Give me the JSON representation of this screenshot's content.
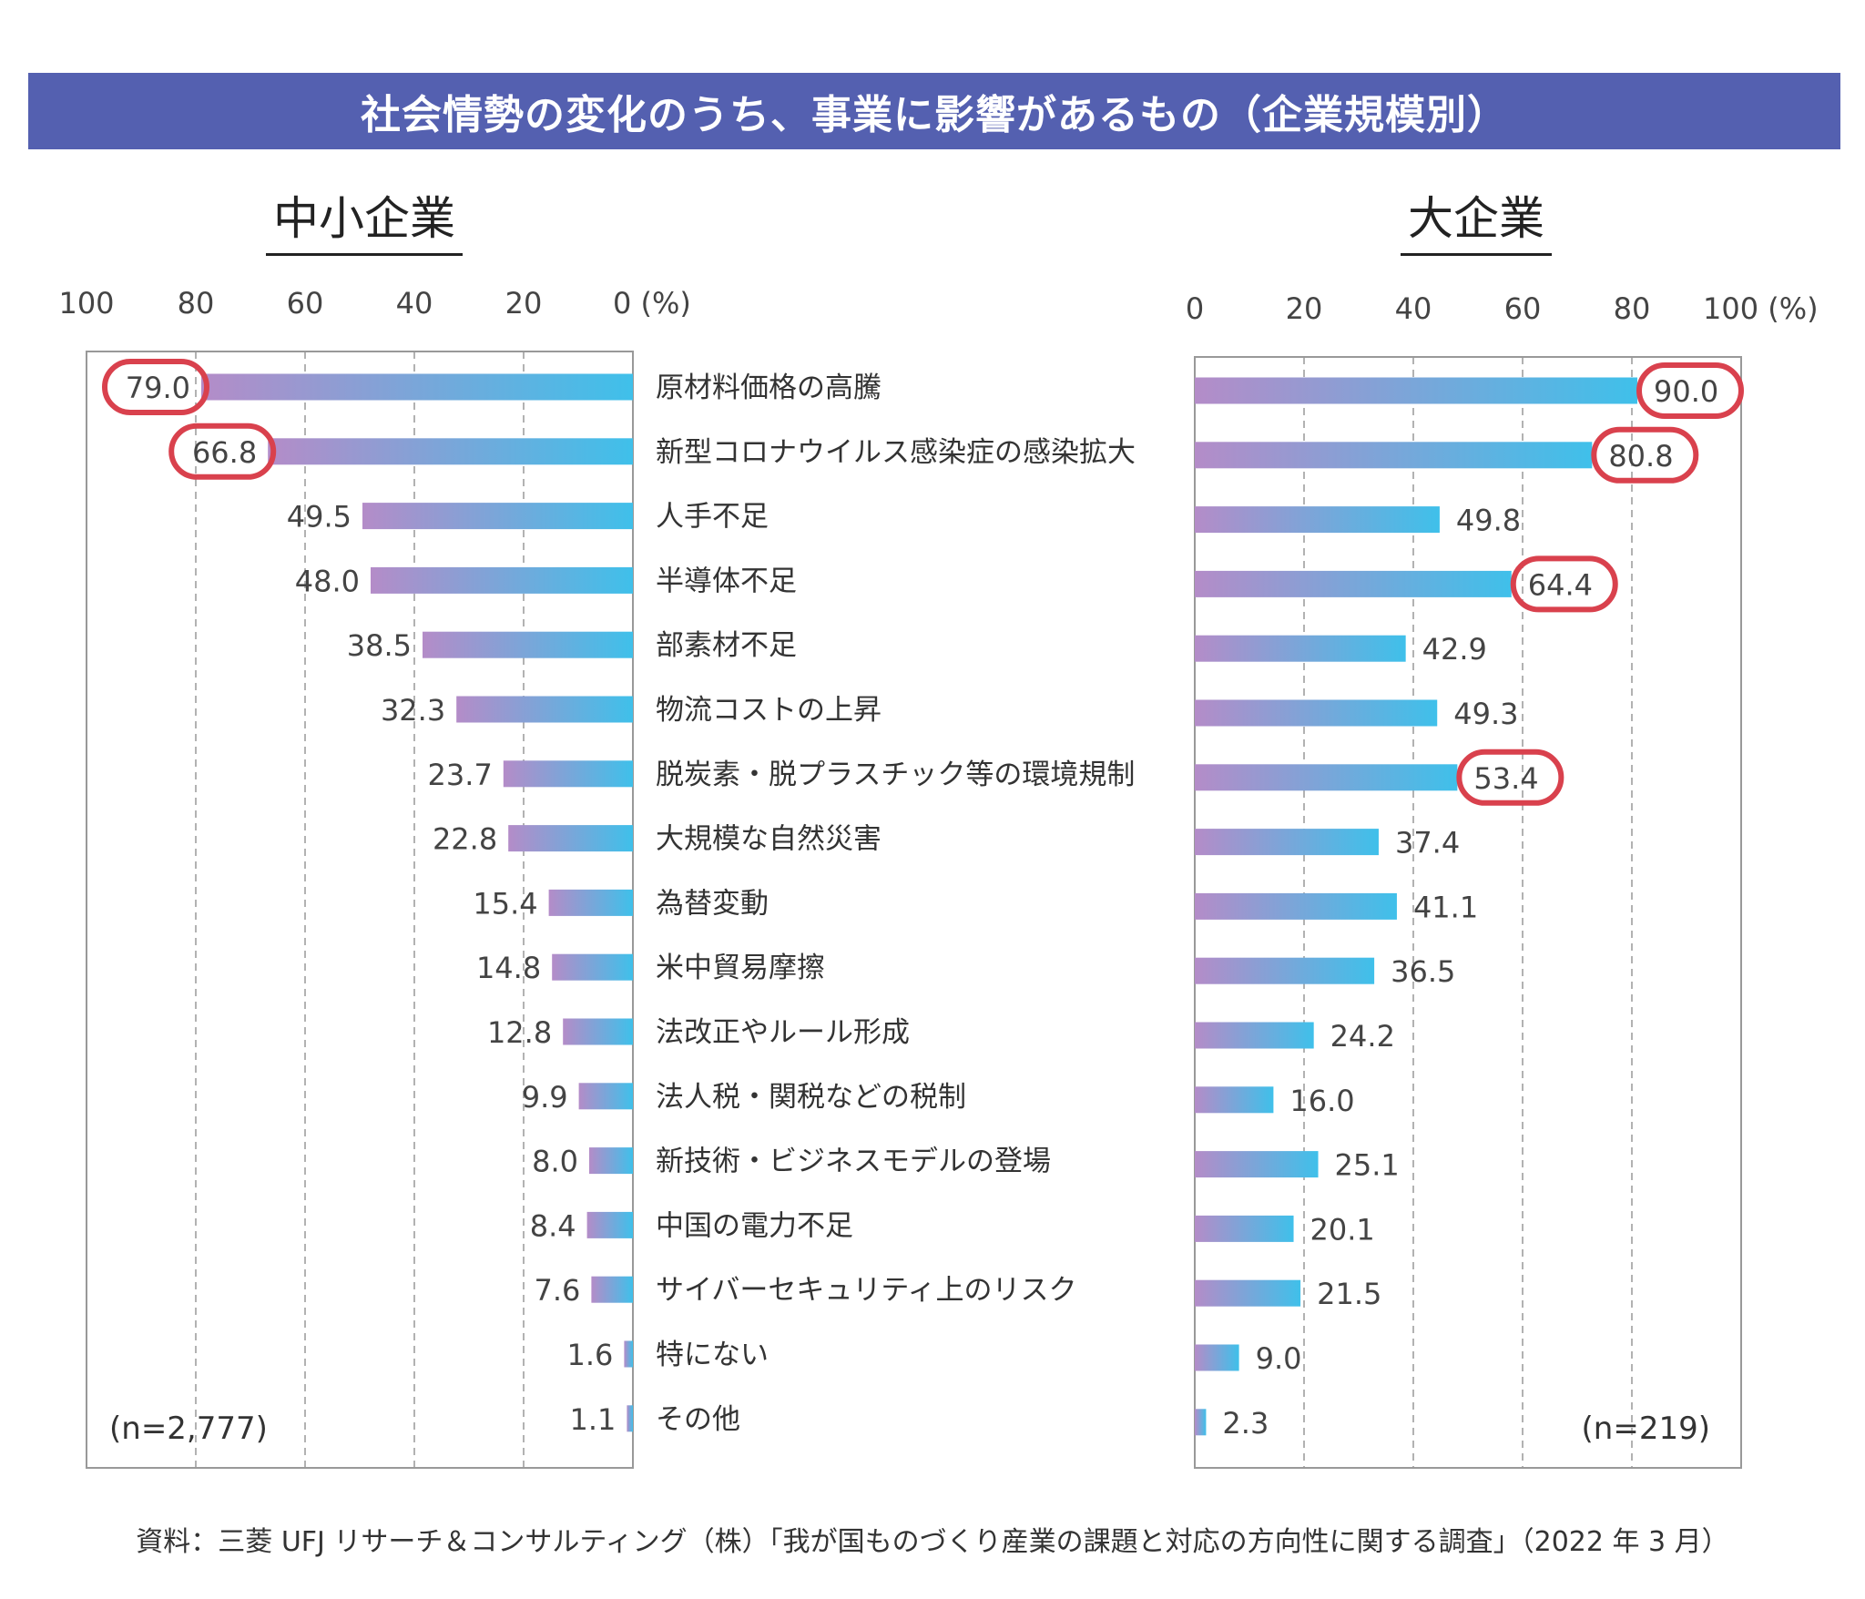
{
  "title": "社会情勢の変化のうち、事業に影響があるもの（企業規模別）",
  "source_note": "資料：三菱 UFJ リサーチ＆コンサルティング（株）「我が国ものづくり産業の課題と対応の方向性に関する調査」（2022 年 3 月）",
  "colors": {
    "header_bg": "#5460b0",
    "bar_gradient_start": "#b48cc8",
    "bar_gradient_end": "#3fc0ea",
    "highlight_ring": "#d9414d",
    "axis_frame": "#999999",
    "grid": "#999999"
  },
  "chart_data": [
    {
      "type": "bar",
      "orientation": "horizontal",
      "direction": "right-to-left",
      "title": "中小企業",
      "xlabel": "",
      "ylabel": "",
      "xlim": [
        0,
        100
      ],
      "ticks": [
        "100",
        "80",
        "60",
        "40",
        "20",
        "0 (%)"
      ],
      "grid": true,
      "sample_note": "(n=2,777)",
      "categories": [
        "原材料価格の高騰",
        "新型コロナウイルス感染症の感染拡大",
        "人手不足",
        "半導体不足",
        "部素材不足",
        "物流コストの上昇",
        "脱炭素・脱プラスチック等の環境規制",
        "大規模な自然災害",
        "為替変動",
        "米中貿易摩擦",
        "法改正やルール形成",
        "法人税・関税などの税制",
        "新技術・ビジネスモデルの登場",
        "中国の電力不足",
        "サイバーセキュリティ上のリスク",
        "特にない",
        "その他"
      ],
      "values": [
        79.0,
        66.8,
        49.5,
        48.0,
        38.5,
        32.3,
        23.7,
        22.8,
        15.4,
        14.8,
        12.8,
        9.9,
        8.0,
        8.4,
        7.6,
        1.6,
        1.1
      ],
      "labels": [
        "79.0",
        "66.8",
        "49.5",
        "48.0",
        "38.5",
        "32.3",
        "23.7",
        "22.8",
        "15.4",
        "14.8",
        "12.8",
        "9.9",
        "8.0",
        "8.4",
        "7.6",
        "1.6",
        "1.1"
      ],
      "highlighted": [
        "原材料価格の高騰",
        "新型コロナウイルス感染症の感染拡大"
      ]
    },
    {
      "type": "bar",
      "orientation": "horizontal",
      "direction": "left-to-right",
      "title": "大企業",
      "xlabel": "",
      "ylabel": "",
      "xlim": [
        0,
        100
      ],
      "ticks": [
        "0",
        "20",
        "40",
        "60",
        "80",
        "100 (%)"
      ],
      "grid": true,
      "sample_note": "(n=219)",
      "categories": [
        "原材料価格の高騰",
        "新型コロナウイルス感染症の感染拡大",
        "人手不足",
        "半導体不足",
        "部素材不足",
        "物流コストの上昇",
        "脱炭素・脱プラスチック等の環境規制",
        "大規模な自然災害",
        "為替変動",
        "米中貿易摩擦",
        "法改正やルール形成",
        "法人税・関税などの税制",
        "新技術・ビジネスモデルの登場",
        "中国の電力不足",
        "サイバーセキュリティ上のリスク",
        "特にない",
        "その他"
      ],
      "values": [
        90.0,
        80.8,
        49.8,
        64.4,
        42.9,
        49.3,
        53.4,
        37.4,
        41.1,
        36.5,
        24.2,
        16.0,
        25.1,
        20.1,
        21.5,
        9.0,
        2.3
      ],
      "labels": [
        "90.0",
        "80.8",
        "49.8",
        "64.4",
        "42.9",
        "49.3",
        "53.4",
        "37.4",
        "41.1",
        "36.5",
        "24.2",
        "16.0",
        "25.1",
        "20.1",
        "21.5",
        "9.0",
        "2.3"
      ],
      "highlighted": [
        "原材料価格の高騰",
        "新型コロナウイルス感染症の感染拡大",
        "半導体不足",
        "脱炭素・脱プラスチック等の環境規制"
      ]
    }
  ]
}
